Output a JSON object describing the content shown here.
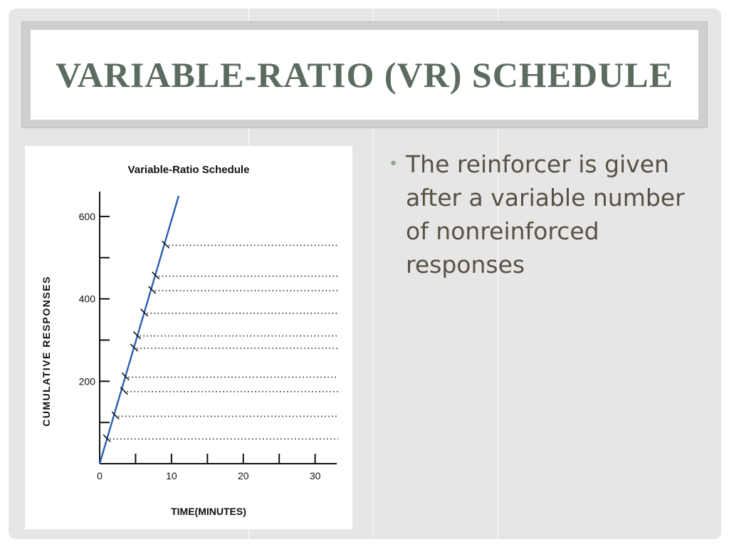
{
  "slide": {
    "title": "VARIABLE-RATIO (VR) SCHEDULE",
    "bullets": [
      {
        "text": "The reinforcer is given after a variable number of nonreinforced responses"
      }
    ],
    "bullet_symbol": "•",
    "colors": {
      "background": "#e6e6e6",
      "title_text": "#5c6b5f",
      "bullet_text": "#595145",
      "bullet_dot": "#93a38f",
      "series_line": "#2a5fb0"
    }
  },
  "chart_data": {
    "type": "line",
    "title": "Variable-Ratio Schedule",
    "xlabel": "TIME(MINUTES)",
    "ylabel": "CUMULATIVE RESPONSES",
    "xlim": [
      0,
      34
    ],
    "ylim": [
      0,
      650
    ],
    "x_ticks": [
      0,
      10,
      20,
      30
    ],
    "y_ticks": [
      200,
      400,
      600
    ],
    "x_minor_ticks": [
      5,
      15,
      25
    ],
    "y_minor_ticks": [
      100,
      300,
      500
    ],
    "grid": false,
    "series": [
      {
        "x": [
          0,
          11
        ],
        "y": [
          0,
          650
        ]
      }
    ],
    "reinforcement_marks": [
      {
        "x": 1.0,
        "y": 60
      },
      {
        "x": 2.2,
        "y": 115
      },
      {
        "x": 3.4,
        "y": 175
      },
      {
        "x": 3.6,
        "y": 210
      },
      {
        "x": 4.8,
        "y": 280
      },
      {
        "x": 5.2,
        "y": 310
      },
      {
        "x": 6.2,
        "y": 365
      },
      {
        "x": 7.3,
        "y": 420
      },
      {
        "x": 7.8,
        "y": 455
      },
      {
        "x": 9.2,
        "y": 530
      }
    ]
  }
}
